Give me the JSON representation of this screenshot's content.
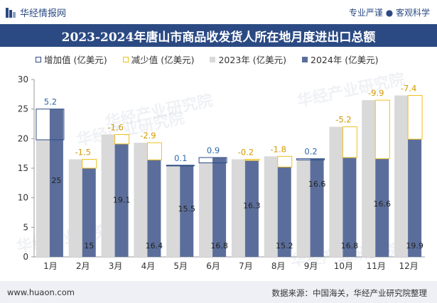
{
  "header": {
    "brand": "华经情报网",
    "tagline": "专业严谨 ● 客观科学"
  },
  "title": "2023-2024年唐山市商品收发货人所在地月度进出口总额",
  "legend": [
    {
      "label": "增加值 (亿美元)",
      "kind": "increase"
    },
    {
      "label": "减少值 (亿美元)",
      "kind": "decrease"
    },
    {
      "label": "2023年 (亿美元)",
      "kind": "y2023"
    },
    {
      "label": "2024年 (亿美元)",
      "kind": "y2024"
    }
  ],
  "footer": {
    "website": "www.huaon.com",
    "source": "数据来源：中国海关，华经产业研究院整理"
  },
  "watermark": "华经产业研究院",
  "colors": {
    "y2023": "#d9d9d9",
    "y2024": "#5b6e9b",
    "increase_border": "#2b4a83",
    "decrease_border": "#f0c020",
    "increase_text": "#2b6aa8",
    "decrease_text": "#d19a00",
    "brand_blue": "#2b4a83"
  },
  "chart_data": {
    "type": "bar",
    "categories": [
      "1月",
      "2月",
      "3月",
      "4月",
      "5月",
      "6月",
      "7月",
      "8月",
      "9月",
      "10月",
      "11月",
      "12月"
    ],
    "series": [
      {
        "name": "2023年 (亿美元)",
        "values": [
          19.8,
          16.5,
          20.7,
          19.3,
          15.4,
          15.9,
          16.5,
          17.0,
          16.4,
          22.0,
          26.5,
          27.3
        ]
      },
      {
        "name": "2024年 (亿美元)",
        "values": [
          25,
          15,
          19.1,
          16.4,
          15.5,
          16.8,
          16.3,
          15.2,
          16.6,
          16.8,
          16.6,
          19.9
        ]
      }
    ],
    "bar_labels_2024": [
      "25",
      "15",
      "19.1",
      "16.4",
      "15.5",
      "16.8",
      "16.3",
      "15.2",
      "16.6",
      "16.8",
      "16.6",
      "19.9"
    ],
    "change_labels": [
      "5.2",
      "-1.5",
      "-1.6",
      "-2.9",
      "0.1",
      "0.9",
      "-0.2",
      "-1.8",
      "0.2",
      "-5.2",
      "-9.9",
      "-7.4"
    ],
    "ylim": [
      0,
      30
    ],
    "yticks": [
      "0",
      "5",
      "10",
      "15",
      "20",
      "25",
      "30"
    ],
    "grid": false,
    "legend_position": "top"
  }
}
